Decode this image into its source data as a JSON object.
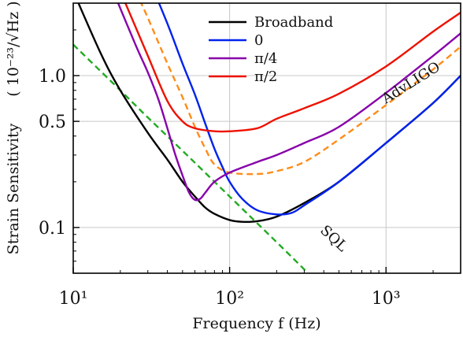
{
  "chart_data": {
    "type": "line",
    "title": "",
    "xlabel": "Frequency f (Hz)",
    "ylabel": "Strain Sensitivity",
    "ylabel_unit": "( 10⁻²³/√Hz )",
    "x_scale": "log",
    "y_scale": "log",
    "xlim": [
      10,
      3000
    ],
    "ylim": [
      0.05,
      3.0
    ],
    "x_ticks": [
      {
        "value": 10,
        "label": "10¹"
      },
      {
        "value": 100,
        "label": "10²"
      },
      {
        "value": 1000,
        "label": "10³"
      }
    ],
    "y_ticks": [
      {
        "value": 0.1,
        "label": "0.1"
      },
      {
        "value": 0.5,
        "label": "0.5"
      },
      {
        "value": 1.0,
        "label": "1.0"
      }
    ],
    "grid": true,
    "legend": {
      "placement": "top-center",
      "entries": [
        "Broadband",
        "0",
        "π/4",
        "π/2"
      ]
    },
    "annotations": [
      "AdvLIGO",
      "SQL"
    ],
    "series": [
      {
        "name": "Broadband",
        "color": "#000000",
        "style": "solid",
        "points": [
          [
            10,
            3.6
          ],
          [
            15,
            1.4
          ],
          [
            20,
            0.8
          ],
          [
            30,
            0.42
          ],
          [
            40,
            0.28
          ],
          [
            50,
            0.2
          ],
          [
            60,
            0.16
          ],
          [
            70,
            0.135
          ],
          [
            80,
            0.123
          ],
          [
            100,
            0.112
          ],
          [
            120,
            0.109
          ],
          [
            150,
            0.11
          ],
          [
            200,
            0.118
          ],
          [
            300,
            0.145
          ],
          [
            500,
            0.2
          ],
          [
            1000,
            0.36
          ],
          [
            2000,
            0.66
          ],
          [
            3000,
            1.0
          ]
        ]
      },
      {
        "name": "0",
        "color": "#0022ee",
        "style": "solid",
        "points": [
          [
            30,
            4.5
          ],
          [
            40,
            2.2
          ],
          [
            50,
            1.2
          ],
          [
            60,
            0.75
          ],
          [
            70,
            0.48
          ],
          [
            80,
            0.33
          ],
          [
            90,
            0.25
          ],
          [
            100,
            0.2
          ],
          [
            120,
            0.155
          ],
          [
            150,
            0.13
          ],
          [
            200,
            0.122
          ],
          [
            250,
            0.125
          ],
          [
            300,
            0.14
          ],
          [
            500,
            0.2
          ],
          [
            1000,
            0.36
          ],
          [
            2000,
            0.66
          ],
          [
            3000,
            1.0
          ]
        ]
      },
      {
        "name": "π/4",
        "color": "#8800aa",
        "style": "solid",
        "points": [
          [
            18,
            3.6
          ],
          [
            25,
            1.6
          ],
          [
            30,
            1.05
          ],
          [
            35,
            0.7
          ],
          [
            40,
            0.45
          ],
          [
            45,
            0.3
          ],
          [
            50,
            0.22
          ],
          [
            55,
            0.17
          ],
          [
            60,
            0.152
          ],
          [
            65,
            0.155
          ],
          [
            70,
            0.17
          ],
          [
            80,
            0.2
          ],
          [
            100,
            0.23
          ],
          [
            150,
            0.27
          ],
          [
            200,
            0.3
          ],
          [
            300,
            0.36
          ],
          [
            500,
            0.46
          ],
          [
            1000,
            0.77
          ],
          [
            2000,
            1.35
          ],
          [
            3000,
            1.9
          ]
        ]
      },
      {
        "name": "π/2",
        "color": "#ee1100",
        "style": "solid",
        "points": [
          [
            20,
            3.6
          ],
          [
            30,
            1.35
          ],
          [
            40,
            0.68
          ],
          [
            50,
            0.5
          ],
          [
            60,
            0.45
          ],
          [
            80,
            0.43
          ],
          [
            100,
            0.43
          ],
          [
            150,
            0.45
          ],
          [
            200,
            0.52
          ],
          [
            300,
            0.61
          ],
          [
            500,
            0.76
          ],
          [
            1000,
            1.15
          ],
          [
            2000,
            1.95
          ],
          [
            3000,
            2.6
          ]
        ]
      },
      {
        "name": "AdvLIGO",
        "color": "#ff8c1a",
        "style": "dashed",
        "points": [
          [
            25,
            3.6
          ],
          [
            30,
            2.4
          ],
          [
            40,
            1.2
          ],
          [
            50,
            0.72
          ],
          [
            60,
            0.46
          ],
          [
            70,
            0.33
          ],
          [
            80,
            0.26
          ],
          [
            100,
            0.23
          ],
          [
            150,
            0.225
          ],
          [
            200,
            0.235
          ],
          [
            300,
            0.27
          ],
          [
            500,
            0.38
          ],
          [
            1000,
            0.64
          ],
          [
            2000,
            1.1
          ],
          [
            3000,
            1.55
          ]
        ]
      },
      {
        "name": "SQL",
        "color": "#22aa22",
        "style": "dashed",
        "points": [
          [
            10,
            1.6
          ],
          [
            20,
            0.8
          ],
          [
            30,
            0.53
          ],
          [
            50,
            0.32
          ],
          [
            100,
            0.16
          ],
          [
            200,
            0.08
          ],
          [
            300,
            0.053
          ],
          [
            330,
            0.048
          ]
        ]
      }
    ]
  }
}
